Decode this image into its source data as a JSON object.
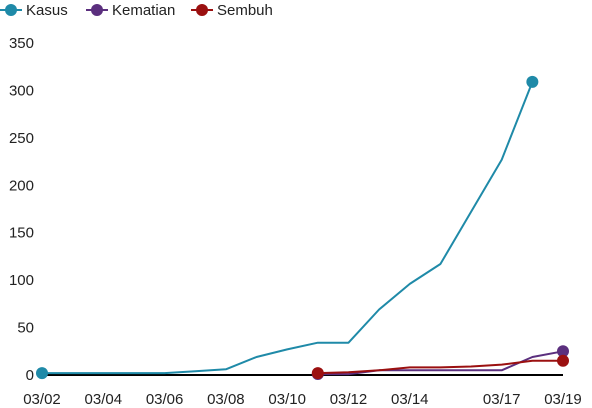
{
  "chart_data": {
    "type": "line",
    "title": "",
    "xlabel": "",
    "ylabel": "",
    "x": [
      "03/02",
      "03/03",
      "03/04",
      "03/05",
      "03/06",
      "03/07",
      "03/08",
      "03/09",
      "03/10",
      "03/11",
      "03/12",
      "03/13",
      "03/14",
      "03/15",
      "03/16",
      "03/17",
      "03/18",
      "03/19"
    ],
    "x_ticks": [
      "03/02",
      "03/04",
      "03/06",
      "03/08",
      "03/10",
      "03/12",
      "03/14",
      "03/17",
      "03/19"
    ],
    "ylim": [
      0,
      350
    ],
    "y_ticks": [
      0,
      50,
      100,
      150,
      200,
      250,
      300,
      350
    ],
    "grid": false,
    "legend_position": "top-left",
    "series": [
      {
        "name": "Kasus",
        "color": "#1f8aa8",
        "values": [
          2,
          2,
          2,
          2,
          2,
          4,
          6,
          19,
          27,
          34,
          34,
          69,
          96,
          117,
          172,
          227,
          309,
          null
        ],
        "end_marker_only_first_last": true
      },
      {
        "name": "Kematian",
        "color": "#5b2f7e",
        "values": [
          null,
          null,
          null,
          null,
          null,
          null,
          null,
          null,
          null,
          1,
          1,
          5,
          5,
          5,
          5,
          5,
          19,
          25
        ],
        "end_marker_only_first_last": true
      },
      {
        "name": "Sembuh",
        "color": "#9b1010",
        "values": [
          null,
          null,
          null,
          null,
          null,
          null,
          null,
          null,
          null,
          2,
          3,
          5,
          8,
          8,
          9,
          11,
          15,
          15
        ],
        "end_marker_only_first_last": true
      }
    ]
  }
}
